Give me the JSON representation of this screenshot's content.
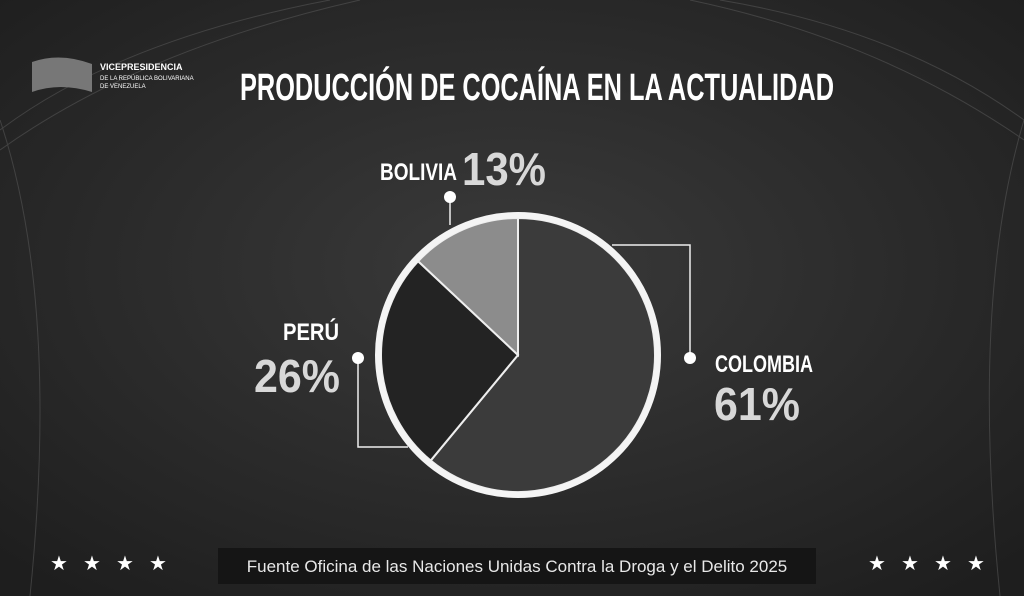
{
  "logo": {
    "lines": [
      "VICEPRESIDENCIA",
      "DE LA REPÚBLICA BOLIVARIANA",
      "DE VENEZUELA"
    ]
  },
  "chart_data": {
    "type": "pie",
    "title": "PRODUCCIÓN DE COCAÍNA EN LA ACTUALIDAD",
    "categories": [
      "COLOMBIA",
      "PERÚ",
      "BOLIVIA"
    ],
    "values": [
      61,
      26,
      13
    ],
    "value_labels": [
      "61%",
      "26%",
      "13%"
    ],
    "colors": [
      "#3b3b3b",
      "#232323",
      "#8c8c8c"
    ],
    "source": "Fuente Oficina de las Naciones Unidas Contra la Droga y el Delito 2025"
  }
}
